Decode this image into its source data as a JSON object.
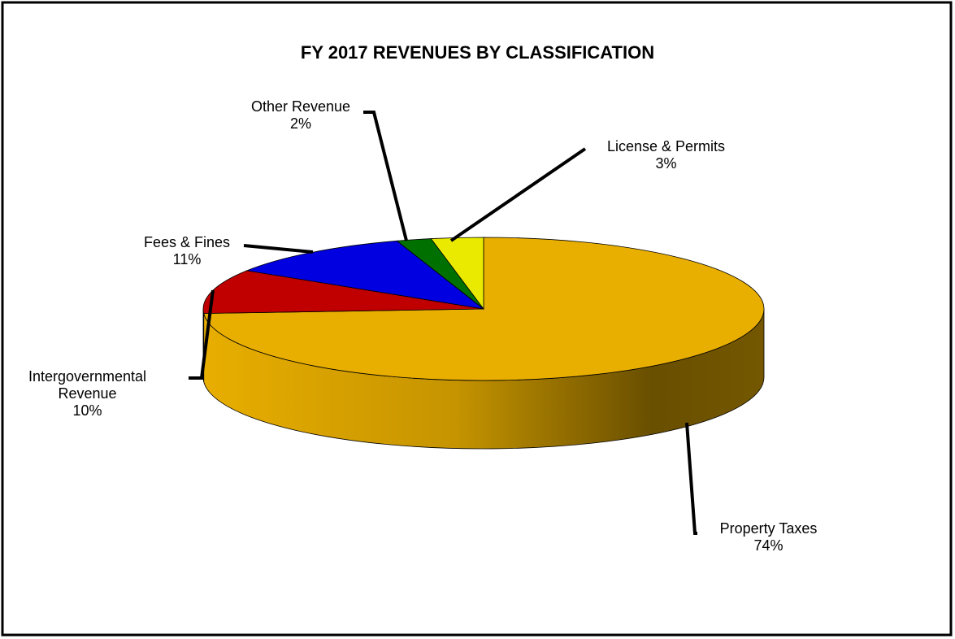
{
  "chart_data": {
    "type": "pie",
    "title": "FY 2017 REVENUES BY CLASSIFICATION",
    "categories": [
      "Property Taxes",
      "Intergovernmental Revenue",
      "Fees & Fines",
      "Other Revenue",
      "License & Permits"
    ],
    "values": [
      74,
      10,
      11,
      2,
      3
    ],
    "value_labels": [
      "74%",
      "10%",
      "11%",
      "2%",
      "3%"
    ],
    "colors": [
      "#e8ae00",
      "#c00000",
      "#0000e0",
      "#007000",
      "#eaea00"
    ]
  }
}
